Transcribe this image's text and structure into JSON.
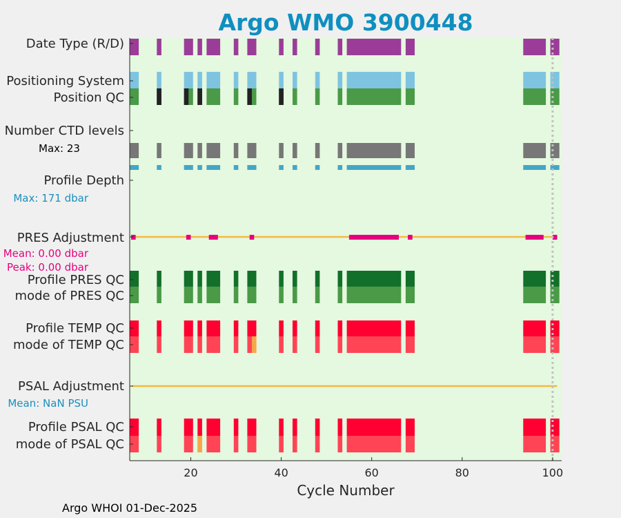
{
  "chart_data": {
    "type": "status-timeline",
    "title": "Argo WMO 3900448",
    "xlabel": "Cycle Number",
    "xlim": [
      6.5,
      102
    ],
    "xticks": [
      20,
      40,
      60,
      80,
      100
    ],
    "footer": "Argo WHOI 01-Dec-2025",
    "marker_cycle": 100,
    "cycle_groups": {
      "main": [
        [
          6.5,
          8.5
        ],
        [
          12.5,
          13.5
        ],
        [
          18.5,
          20.5
        ],
        [
          21.5,
          22.5
        ],
        [
          23.5,
          26.5
        ],
        [
          29.5,
          30.5
        ],
        [
          32.5,
          34.5
        ],
        [
          39.5,
          40.5
        ],
        [
          42.5,
          43.5
        ],
        [
          47.5,
          48.5
        ],
        [
          52.5,
          53.5
        ],
        [
          54.5,
          66.5
        ],
        [
          67.5,
          69.5
        ],
        [
          93.5,
          98.5
        ],
        [
          99.5,
          101.5
        ]
      ],
      "pres_adjusted": [
        [
          6.8,
          7.8
        ],
        [
          19,
          20
        ],
        [
          24,
          26
        ],
        [
          33,
          34
        ],
        [
          55,
          66
        ],
        [
          68,
          69
        ],
        [
          94,
          98
        ],
        [
          100,
          101
        ]
      ]
    },
    "rows": [
      {
        "label": "Date Type (R/D)",
        "color": "#9b3d98",
        "group": "main",
        "lane": "date"
      },
      {
        "label": "Positioning System",
        "color": "#7ec4e0",
        "group": "main",
        "lane": "possys"
      },
      {
        "label": "Position QC",
        "color": "#4a9a47",
        "group": "main",
        "lane": "posqc",
        "overrides": [
          {
            "range": [
              12.5,
              13.5
            ],
            "color": "#222222"
          },
          {
            "range": [
              18.5,
              19.5
            ],
            "color": "#222222"
          },
          {
            "range": [
              21.5,
              22.5
            ],
            "color": "#222222"
          },
          {
            "range": [
              32.5,
              33.5
            ],
            "color": "#222222"
          },
          {
            "range": [
              39.5,
              40.5
            ],
            "color": "#222222"
          }
        ]
      },
      {
        "label": "Number CTD levels",
        "color": "#777777",
        "group": "main",
        "lane": "ctd"
      },
      {
        "label": "Profile Depth",
        "color": "#44a6c6",
        "group": "main",
        "lane": "depth"
      },
      {
        "label": "Profile PRES QC",
        "color": "#12702a",
        "group": "main",
        "lane": "presqc"
      },
      {
        "label": "mode of PRES QC",
        "color": "#4a9a47",
        "group": "main",
        "lane": "presmode"
      },
      {
        "label": "Profile TEMP QC",
        "color": "#ff0030",
        "group": "main",
        "lane": "tempqc"
      },
      {
        "label": "mode of TEMP QC",
        "color": "#ff4455",
        "group": "main",
        "lane": "tempmode",
        "overrides": [
          {
            "range": [
              33.5,
              34.5
            ],
            "color": "#f5a84a"
          }
        ]
      },
      {
        "label": "Profile PSAL QC",
        "color": "#ff0030",
        "group": "main",
        "lane": "psalqc"
      },
      {
        "label": "mode of PSAL QC",
        "color": "#ff4455",
        "group": "main",
        "lane": "psalmode",
        "overrides": [
          {
            "range": [
              21.5,
              22.5
            ],
            "color": "#f5a84a"
          }
        ]
      }
    ],
    "annotations": {
      "ctd_max": "Max: 23",
      "depth_max": "Max:  171 dbar",
      "pres_adj_label": "PRES Adjustment",
      "pres_mean": "Mean: 0.00 dbar",
      "pres_peak": "Peak: 0.00 dbar",
      "psal_adj_label": "PSAL Adjustment",
      "psal_mean": "Mean:  NaN PSU"
    },
    "colors": {
      "title": "#0f8fc0",
      "plot_bg": "#e5f8e0",
      "figure_bg": "#f0f0f0",
      "adjustment_line": "#f5b840",
      "pres_adjusted": "#e6007e",
      "depth_text": "#1a8fbf",
      "pres_text": "#e6007e",
      "psal_text": "#1a8fbf",
      "marker_line": "#c0c0c0"
    }
  }
}
